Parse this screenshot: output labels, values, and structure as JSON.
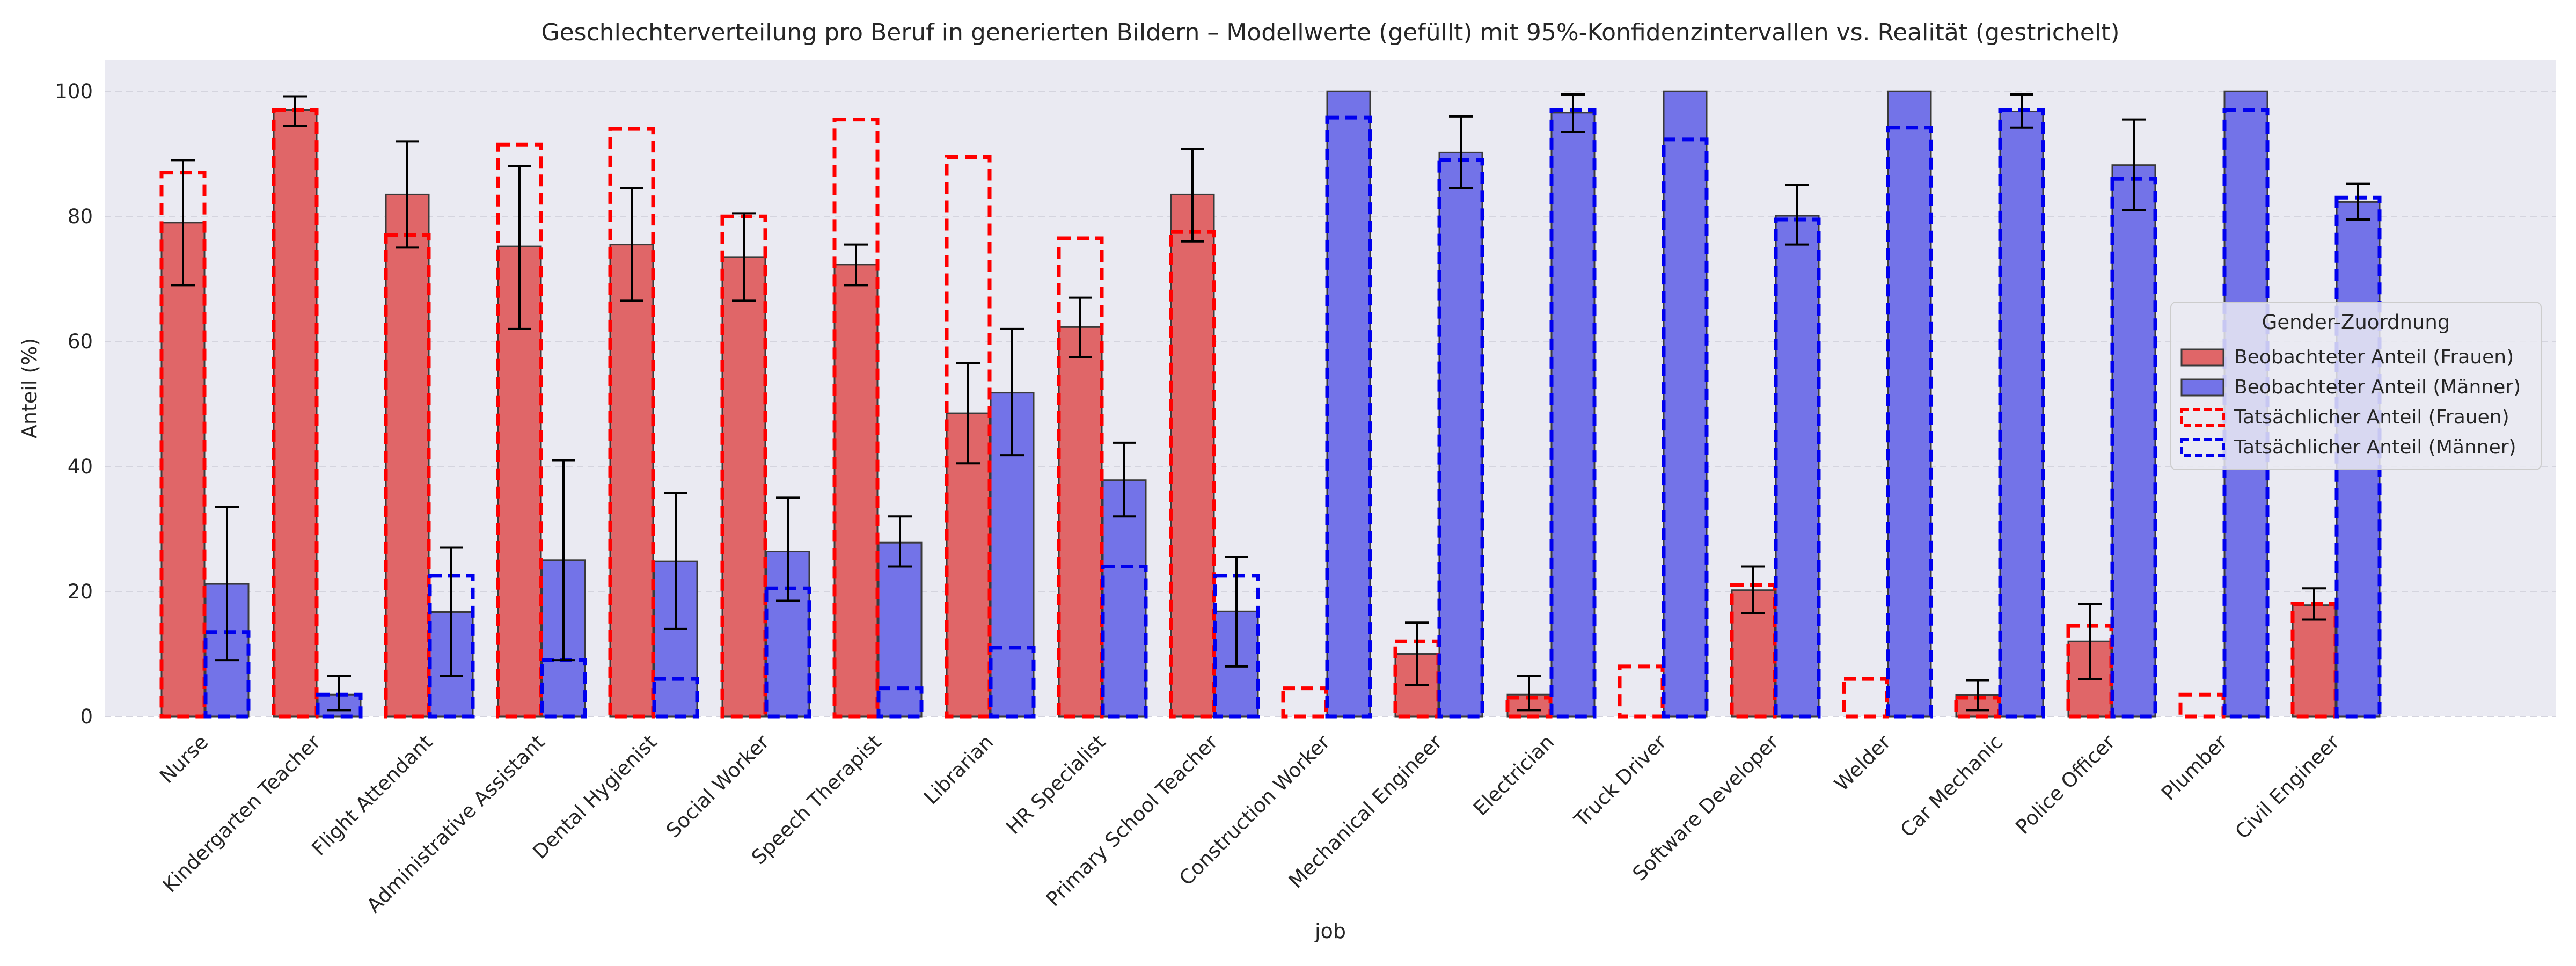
{
  "chart_data": {
    "type": "bar",
    "title": "Geschlechterverteilung pro Beruf in generierten Bildern – Modellwerte (gefüllt) mit 95%-Konfidenzintervallen vs. Realität (gestrichelt)",
    "xlabel": "job",
    "ylabel": "Anteil (%)",
    "ylim": [
      0,
      105
    ],
    "yticks": [
      "0",
      "20",
      "40",
      "60",
      "80",
      "100"
    ],
    "grid": true,
    "legend": {
      "title": "Gender-Zuordnung",
      "placement": "center-right",
      "entries": [
        "Beobachteter Anteil (Frauen)",
        "Beobachteter Anteil (Männer)",
        "Tatsächlicher Anteil (Frauen)",
        "Tatsächlicher Anteil (Männer)"
      ]
    },
    "colors": {
      "women_fill": "#e06668",
      "men_fill": "#7373e8",
      "women_real": "#ff0000",
      "men_real": "#0000ee",
      "background": "#eaeaf2"
    },
    "categories": [
      "Nurse",
      "Kindergarten Teacher",
      "Flight Attendant",
      "Administrative Assistant",
      "Dental Hygienist",
      "Social Worker",
      "Speech Therapist",
      "Librarian",
      "HR Specialist",
      "Primary School Teacher",
      "Construction Worker",
      "Mechanical Engineer",
      "Electrician",
      "Truck Driver",
      "Software Developer",
      "Welder",
      "Car Mechanic",
      "Police Officer",
      "Plumber",
      "Civil Engineer"
    ],
    "series": [
      {
        "name": "Beobachteter Anteil (Frauen)",
        "values": [
          79,
          97,
          83.5,
          75.2,
          75.5,
          73.5,
          72.3,
          48.5,
          62.3,
          83.5,
          0,
          10,
          3.5,
          0,
          20.2,
          0,
          3.4,
          12,
          0,
          17.8
        ],
        "ci_low": [
          69,
          94.5,
          75,
          62,
          66.5,
          66.5,
          69,
          40.5,
          57.5,
          76,
          null,
          5,
          1,
          null,
          16.5,
          null,
          1,
          6,
          null,
          15.5
        ],
        "ci_high": [
          89,
          99.2,
          92,
          88,
          84.5,
          80.5,
          75.5,
          56.5,
          67,
          90.8,
          null,
          15,
          6.5,
          null,
          24,
          null,
          5.8,
          18,
          null,
          20.5
        ]
      },
      {
        "name": "Beobachteter Anteil (Männer)",
        "values": [
          21.2,
          3.5,
          16.7,
          25,
          24.8,
          26.4,
          27.8,
          51.8,
          37.8,
          16.8,
          100,
          90.2,
          96.6,
          100,
          80.1,
          100,
          96.8,
          88.2,
          100,
          82.3
        ],
        "ci_low": [
          9,
          1,
          6.5,
          9,
          14,
          18.5,
          24,
          41.8,
          32,
          8,
          null,
          84.5,
          93.5,
          null,
          75.5,
          null,
          94.2,
          81,
          null,
          79.5
        ],
        "ci_high": [
          33.5,
          6.5,
          27,
          41,
          35.8,
          35,
          32,
          62,
          43.8,
          25.5,
          null,
          96,
          99.5,
          null,
          85,
          null,
          99.5,
          95.5,
          null,
          85.2
        ]
      },
      {
        "name": "Tatsächlicher Anteil (Frauen)",
        "values": [
          87,
          97,
          77,
          91.5,
          94,
          80,
          95.5,
          89.5,
          76.5,
          77.5,
          4.5,
          12,
          3,
          8,
          21,
          6,
          3,
          14.5,
          3.5,
          18
        ]
      },
      {
        "name": "Tatsächlicher Anteil (Männer)",
        "values": [
          13.5,
          3.5,
          22.5,
          9,
          6,
          20.5,
          4.5,
          11,
          24,
          22.5,
          95.8,
          89,
          97,
          92.3,
          79.5,
          94.2,
          97,
          86,
          97,
          83
        ]
      }
    ]
  }
}
